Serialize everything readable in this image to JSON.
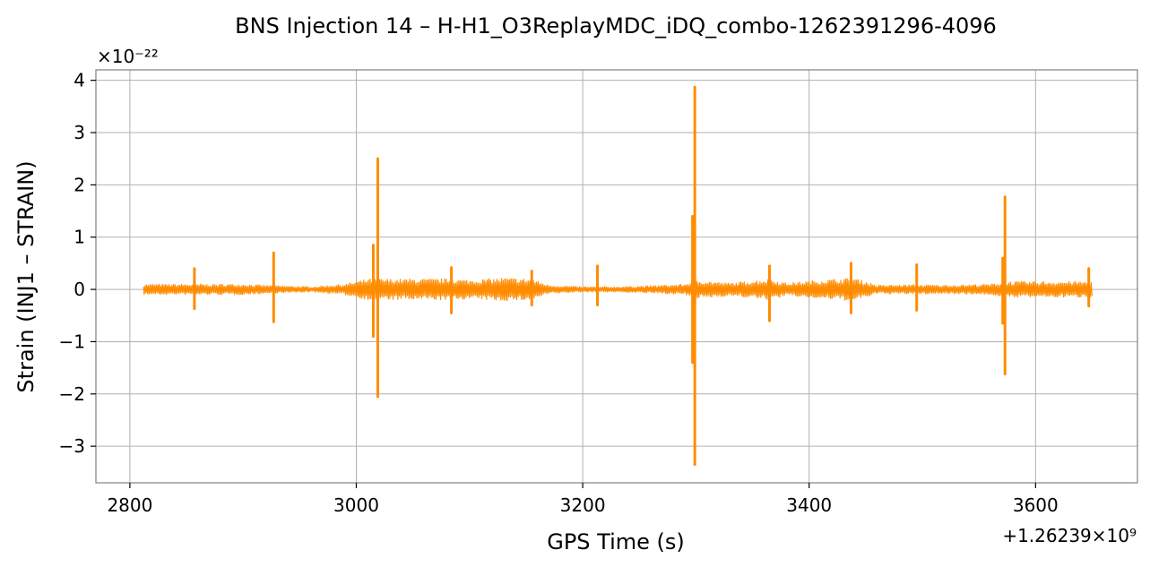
{
  "chart_data": {
    "type": "line",
    "title": "BNS Injection 14 – H-H1_O3ReplayMDC_iDQ_combo-1262391296-4096",
    "xlabel": "GPS Time (s)",
    "ylabel": "Strain (INJ1 – STRAIN)",
    "x_offset_text": "+1.26239×10⁹",
    "y_scale_text": "×10⁻²²",
    "xlim": [
      2770,
      3690
    ],
    "ylim": [
      -3.7,
      4.2
    ],
    "x_ticks": [
      2800,
      3000,
      3200,
      3400,
      3600
    ],
    "x_tick_labels": [
      "2800",
      "3000",
      "3200",
      "3400",
      "3600"
    ],
    "y_ticks": [
      -3,
      -2,
      -1,
      0,
      1,
      2,
      3,
      4
    ],
    "y_tick_labels": [
      "−3",
      "−2",
      "−1",
      "0",
      "1",
      "2",
      "3",
      "4"
    ],
    "grid": true,
    "series": [
      {
        "color": "#ff8c00",
        "x_range": [
          2812,
          3650
        ],
        "baseline_envelope": [
          [
            2812,
            0.1
          ],
          [
            2850,
            0.1
          ],
          [
            2900,
            0.1
          ],
          [
            2930,
            0.07
          ],
          [
            2960,
            0.05
          ],
          [
            2990,
            0.1
          ],
          [
            3000,
            0.15
          ],
          [
            3010,
            0.2
          ],
          [
            3030,
            0.2
          ],
          [
            3060,
            0.2
          ],
          [
            3085,
            0.2
          ],
          [
            3100,
            0.18
          ],
          [
            3130,
            0.22
          ],
          [
            3155,
            0.2
          ],
          [
            3170,
            0.08
          ],
          [
            3200,
            0.05
          ],
          [
            3230,
            0.05
          ],
          [
            3260,
            0.07
          ],
          [
            3290,
            0.1
          ],
          [
            3300,
            0.18
          ],
          [
            3330,
            0.12
          ],
          [
            3365,
            0.2
          ],
          [
            3380,
            0.12
          ],
          [
            3410,
            0.18
          ],
          [
            3440,
            0.22
          ],
          [
            3460,
            0.08
          ],
          [
            3495,
            0.09
          ],
          [
            3520,
            0.08
          ],
          [
            3560,
            0.1
          ],
          [
            3575,
            0.15
          ],
          [
            3600,
            0.15
          ],
          [
            3650,
            0.15
          ]
        ],
        "spikes": [
          {
            "x": 2857,
            "max": 0.4,
            "min": -0.37
          },
          {
            "x": 2927,
            "max": 0.7,
            "min": -0.62
          },
          {
            "x": 3015,
            "max": 0.85,
            "min": -0.9
          },
          {
            "x": 3019,
            "max": 2.5,
            "min": -2.05
          },
          {
            "x": 3084,
            "max": 0.42,
            "min": -0.45
          },
          {
            "x": 3155,
            "max": 0.35,
            "min": -0.3
          },
          {
            "x": 3213,
            "max": 0.45,
            "min": -0.3
          },
          {
            "x": 3297,
            "max": 1.4,
            "min": -1.4
          },
          {
            "x": 3299,
            "max": 3.87,
            "min": -3.35
          },
          {
            "x": 3365,
            "max": 0.45,
            "min": -0.6
          },
          {
            "x": 3437,
            "max": 0.5,
            "min": -0.45
          },
          {
            "x": 3495,
            "max": 0.47,
            "min": -0.4
          },
          {
            "x": 3571,
            "max": 0.6,
            "min": -0.65
          },
          {
            "x": 3573,
            "max": 1.77,
            "min": -1.62
          },
          {
            "x": 3647,
            "max": 0.4,
            "min": -0.32
          }
        ]
      }
    ]
  }
}
